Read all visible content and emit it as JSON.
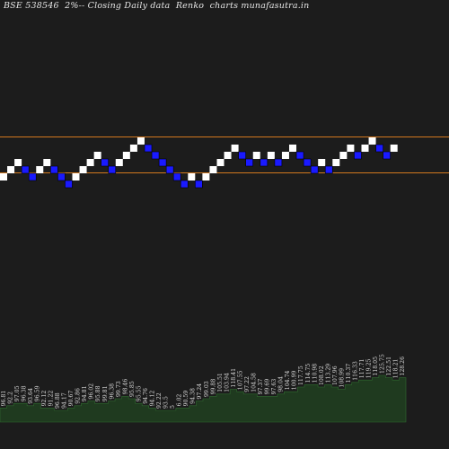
{
  "chart_data": {
    "type": "renko",
    "title": "BSE 538546  2%-- Closing Daily data  Renko  charts munafasutra.in",
    "colors": {
      "background": "#1c1c1c",
      "up_brick": "#ffffff",
      "down_brick": "#1a1aff",
      "reference_line": "#d2781e",
      "volume_fill": "#1f3a1f",
      "volume_stroke": "#2f6a2f",
      "label": "#d8d8d8"
    },
    "bricks": [
      {
        "dir": "up",
        "level": 0
      },
      {
        "dir": "up",
        "level": 1
      },
      {
        "dir": "up",
        "level": 2
      },
      {
        "dir": "down",
        "level": 1
      },
      {
        "dir": "down",
        "level": 0
      },
      {
        "dir": "up",
        "level": 1
      },
      {
        "dir": "up",
        "level": 2
      },
      {
        "dir": "down",
        "level": 1
      },
      {
        "dir": "down",
        "level": 0
      },
      {
        "dir": "down",
        "level": -1
      },
      {
        "dir": "up",
        "level": 0
      },
      {
        "dir": "up",
        "level": 1
      },
      {
        "dir": "up",
        "level": 2
      },
      {
        "dir": "up",
        "level": 3
      },
      {
        "dir": "down",
        "level": 2
      },
      {
        "dir": "down",
        "level": 1
      },
      {
        "dir": "up",
        "level": 2
      },
      {
        "dir": "up",
        "level": 3
      },
      {
        "dir": "up",
        "level": 4
      },
      {
        "dir": "up",
        "level": 5
      },
      {
        "dir": "down",
        "level": 4
      },
      {
        "dir": "down",
        "level": 3
      },
      {
        "dir": "down",
        "level": 2
      },
      {
        "dir": "down",
        "level": 1
      },
      {
        "dir": "down",
        "level": 0
      },
      {
        "dir": "down",
        "level": -1
      },
      {
        "dir": "up",
        "level": 0
      },
      {
        "dir": "down",
        "level": -1
      },
      {
        "dir": "up",
        "level": 0
      },
      {
        "dir": "up",
        "level": 1
      },
      {
        "dir": "up",
        "level": 2
      },
      {
        "dir": "up",
        "level": 3
      },
      {
        "dir": "up",
        "level": 4
      },
      {
        "dir": "down",
        "level": 3
      },
      {
        "dir": "down",
        "level": 2
      },
      {
        "dir": "up",
        "level": 3
      },
      {
        "dir": "down",
        "level": 2
      },
      {
        "dir": "up",
        "level": 3
      },
      {
        "dir": "down",
        "level": 2
      },
      {
        "dir": "up",
        "level": 3
      },
      {
        "dir": "up",
        "level": 4
      },
      {
        "dir": "down",
        "level": 3
      },
      {
        "dir": "down",
        "level": 2
      },
      {
        "dir": "down",
        "level": 1
      },
      {
        "dir": "up",
        "level": 2
      },
      {
        "dir": "down",
        "level": 1
      },
      {
        "dir": "up",
        "level": 2
      },
      {
        "dir": "up",
        "level": 3
      },
      {
        "dir": "up",
        "level": 4
      },
      {
        "dir": "down",
        "level": 3
      },
      {
        "dir": "up",
        "level": 4
      },
      {
        "dir": "up",
        "level": 5
      },
      {
        "dir": "down",
        "level": 4
      },
      {
        "dir": "down",
        "level": 3
      },
      {
        "dir": "up",
        "level": 4
      }
    ],
    "reference_levels": [
      5,
      1
    ],
    "volume": [
      {
        "label": "96.81",
        "value": 6
      },
      {
        "label": "92.2",
        "value": 7
      },
      {
        "label": "97.05",
        "value": 8
      },
      {
        "label": "96.38",
        "value": 8
      },
      {
        "label": "93.64",
        "value": 7
      },
      {
        "label": "96.59",
        "value": 8
      },
      {
        "label": "92.12",
        "value": 6
      },
      {
        "label": "91.22",
        "value": 6
      },
      {
        "label": "96.88",
        "value": 5
      },
      {
        "label": "94.17",
        "value": 5
      },
      {
        "label": "90.67",
        "value": 6
      },
      {
        "label": "92.86",
        "value": 7
      },
      {
        "label": "94.81",
        "value": 8
      },
      {
        "label": "96.02",
        "value": 9
      },
      {
        "label": "95.88",
        "value": 8
      },
      {
        "label": "99.81",
        "value": 8
      },
      {
        "label": "96.38",
        "value": 9
      },
      {
        "label": "99.73",
        "value": 10
      },
      {
        "label": "98.46",
        "value": 11
      },
      {
        "label": "95.85",
        "value": 10
      },
      {
        "label": "95.55",
        "value": 8
      },
      {
        "label": "94.76",
        "value": 7
      },
      {
        "label": "94.12",
        "value": 6
      },
      {
        "label": "92.22",
        "value": 5
      },
      {
        "label": "93.5",
        "value": 5
      },
      {
        "label": "5",
        "value": 5
      },
      {
        "label": "6.02",
        "value": 6
      },
      {
        "label": "90.59",
        "value": 6
      },
      {
        "label": "94.38",
        "value": 7
      },
      {
        "label": "97.24",
        "value": 9
      },
      {
        "label": "99.03",
        "value": 10
      },
      {
        "label": "99.88",
        "value": 11
      },
      {
        "label": "105.51",
        "value": 12
      },
      {
        "label": "103.94",
        "value": 12
      },
      {
        "label": "118.41",
        "value": 14
      },
      {
        "label": "107.55",
        "value": 13
      },
      {
        "label": "97.22",
        "value": 12
      },
      {
        "label": "104.58",
        "value": 12
      },
      {
        "label": "97.37",
        "value": 11
      },
      {
        "label": "99.69",
        "value": 11
      },
      {
        "label": "97.63",
        "value": 11
      },
      {
        "label": "98.04",
        "value": 12
      },
      {
        "label": "104.74",
        "value": 13
      },
      {
        "label": "100.99",
        "value": 13
      },
      {
        "label": "117.75",
        "value": 15
      },
      {
        "label": "114.75",
        "value": 16
      },
      {
        "label": "110.98",
        "value": 16
      },
      {
        "label": "108.02",
        "value": 15
      },
      {
        "label": "113.29",
        "value": 16
      },
      {
        "label": "107.96",
        "value": 15
      },
      {
        "label": "108.99",
        "value": 14
      },
      {
        "label": "110.37",
        "value": 16
      },
      {
        "label": "116.33",
        "value": 17
      },
      {
        "label": "117.71",
        "value": 18
      },
      {
        "label": "119.25",
        "value": 18
      },
      {
        "label": "118.05",
        "value": 19
      },
      {
        "label": "125.75",
        "value": 20
      },
      {
        "label": "122.51",
        "value": 19
      },
      {
        "label": "118.21",
        "value": 18
      },
      {
        "label": "128.26",
        "value": 19
      }
    ],
    "xlabel": "",
    "ylabel": "",
    "grid": false,
    "legend": "none"
  }
}
